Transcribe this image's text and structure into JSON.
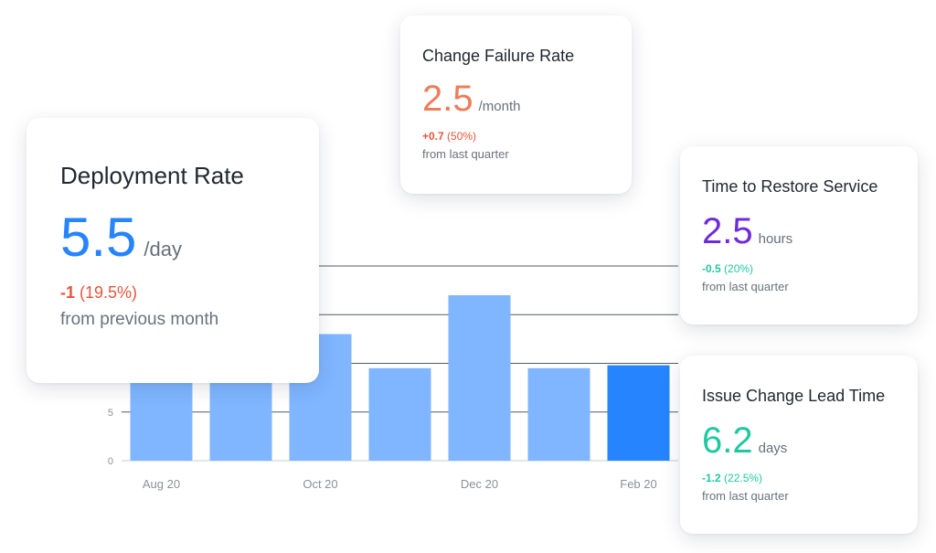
{
  "colors": {
    "bar": "#7fb6ff",
    "bar_highlight": "#2684ff",
    "gridline": "#555a63",
    "tick_text": "#8a9099",
    "blue": "#2684ff",
    "orange": "#f07c5a",
    "purple": "#6f2bd9",
    "teal": "#20c8a0",
    "negative": "#e8553a"
  },
  "chart_data": {
    "type": "bar",
    "categories": [
      "Aug 20",
      "",
      "Oct 20",
      "",
      "Dec 20",
      "",
      "Feb 20"
    ],
    "values": [
      9.5,
      10,
      13,
      9.5,
      17,
      9.5,
      9.8
    ],
    "highlight_index": 6,
    "y_ticks": [
      0,
      5
    ],
    "ylim": [
      0,
      20
    ],
    "grid": true,
    "title": "",
    "xlabel": "",
    "ylabel": ""
  },
  "cards": {
    "deployment_rate": {
      "title": "Deployment Rate",
      "value": "5.5",
      "unit": "/day",
      "delta_strong": "-1",
      "delta_pct": " (19.5%)",
      "note": "from previous month"
    },
    "change_failure_rate": {
      "title": "Change Failure Rate",
      "value": "2.5",
      "unit": "/month",
      "delta_strong": "+0.7",
      "delta_pct": " (50%)",
      "note": "from last quarter"
    },
    "time_to_restore": {
      "title": "Time to Restore Service",
      "value": "2.5",
      "unit": "hours",
      "delta_strong": "-0.5",
      "delta_pct": " (20%)",
      "note": "from last quarter"
    },
    "lead_time": {
      "title": "Issue Change Lead Time",
      "value": "6.2",
      "unit": "days",
      "delta_strong": "-1.2",
      "delta_pct": " (22.5%)",
      "note": "from last quarter"
    }
  }
}
